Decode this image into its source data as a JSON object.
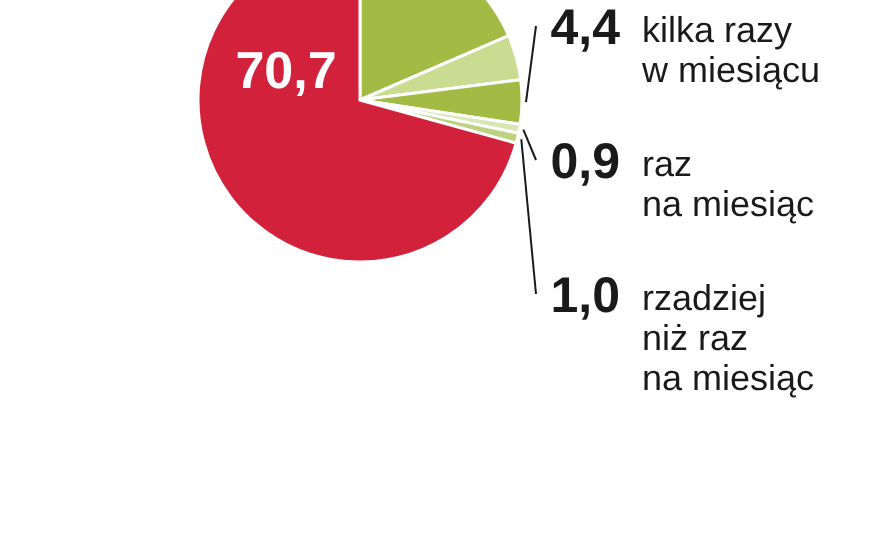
{
  "chart_data": {
    "type": "pie",
    "categories": [
      null,
      null,
      "kilka razy\nw miesiącu",
      "raz\nna miesiąc",
      "rzadziej\nniż raz\nna miesiąc",
      null
    ],
    "values": [
      18.5,
      4.5,
      4.4,
      0.9,
      1.0,
      70.7
    ],
    "value_labels": [
      null,
      null,
      "4,4",
      "0,9",
      "1,0",
      "70,7"
    ],
    "colors": [
      "#a3bb45",
      "#c9dc92",
      "#a3bb45",
      "#d8e6b4",
      "#bcd27e",
      "#d2213a"
    ]
  }
}
